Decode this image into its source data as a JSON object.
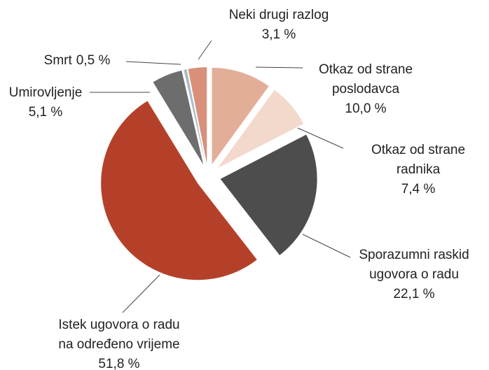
{
  "chart_data": {
    "type": "pie",
    "categories": [
      [
        "Otkaz od strane",
        "poslodavca"
      ],
      [
        "Otkaz od strane",
        "radnika"
      ],
      [
        "Sporazumni raskid",
        "ugovora o radu"
      ],
      [
        "Istek ugovora o radu",
        "na određeno vrijeme"
      ],
      [
        "Umirovljenje"
      ],
      [
        "Smrt"
      ],
      [
        "Neki drugi razlog"
      ]
    ],
    "values": [
      10.0,
      7.4,
      22.1,
      51.8,
      5.1,
      0.5,
      3.1
    ],
    "value_labels": [
      "10,0 %",
      "7,4 %",
      "22,1 %",
      "51,8 %",
      "5,1 %",
      "0,5 %",
      "3,1 %"
    ],
    "colors": [
      "#e3ae98",
      "#f2d9cc",
      "#4d4d4d",
      "#b5402a",
      "#6d6d6d",
      "#a9bcc6",
      "#d9907a"
    ]
  }
}
